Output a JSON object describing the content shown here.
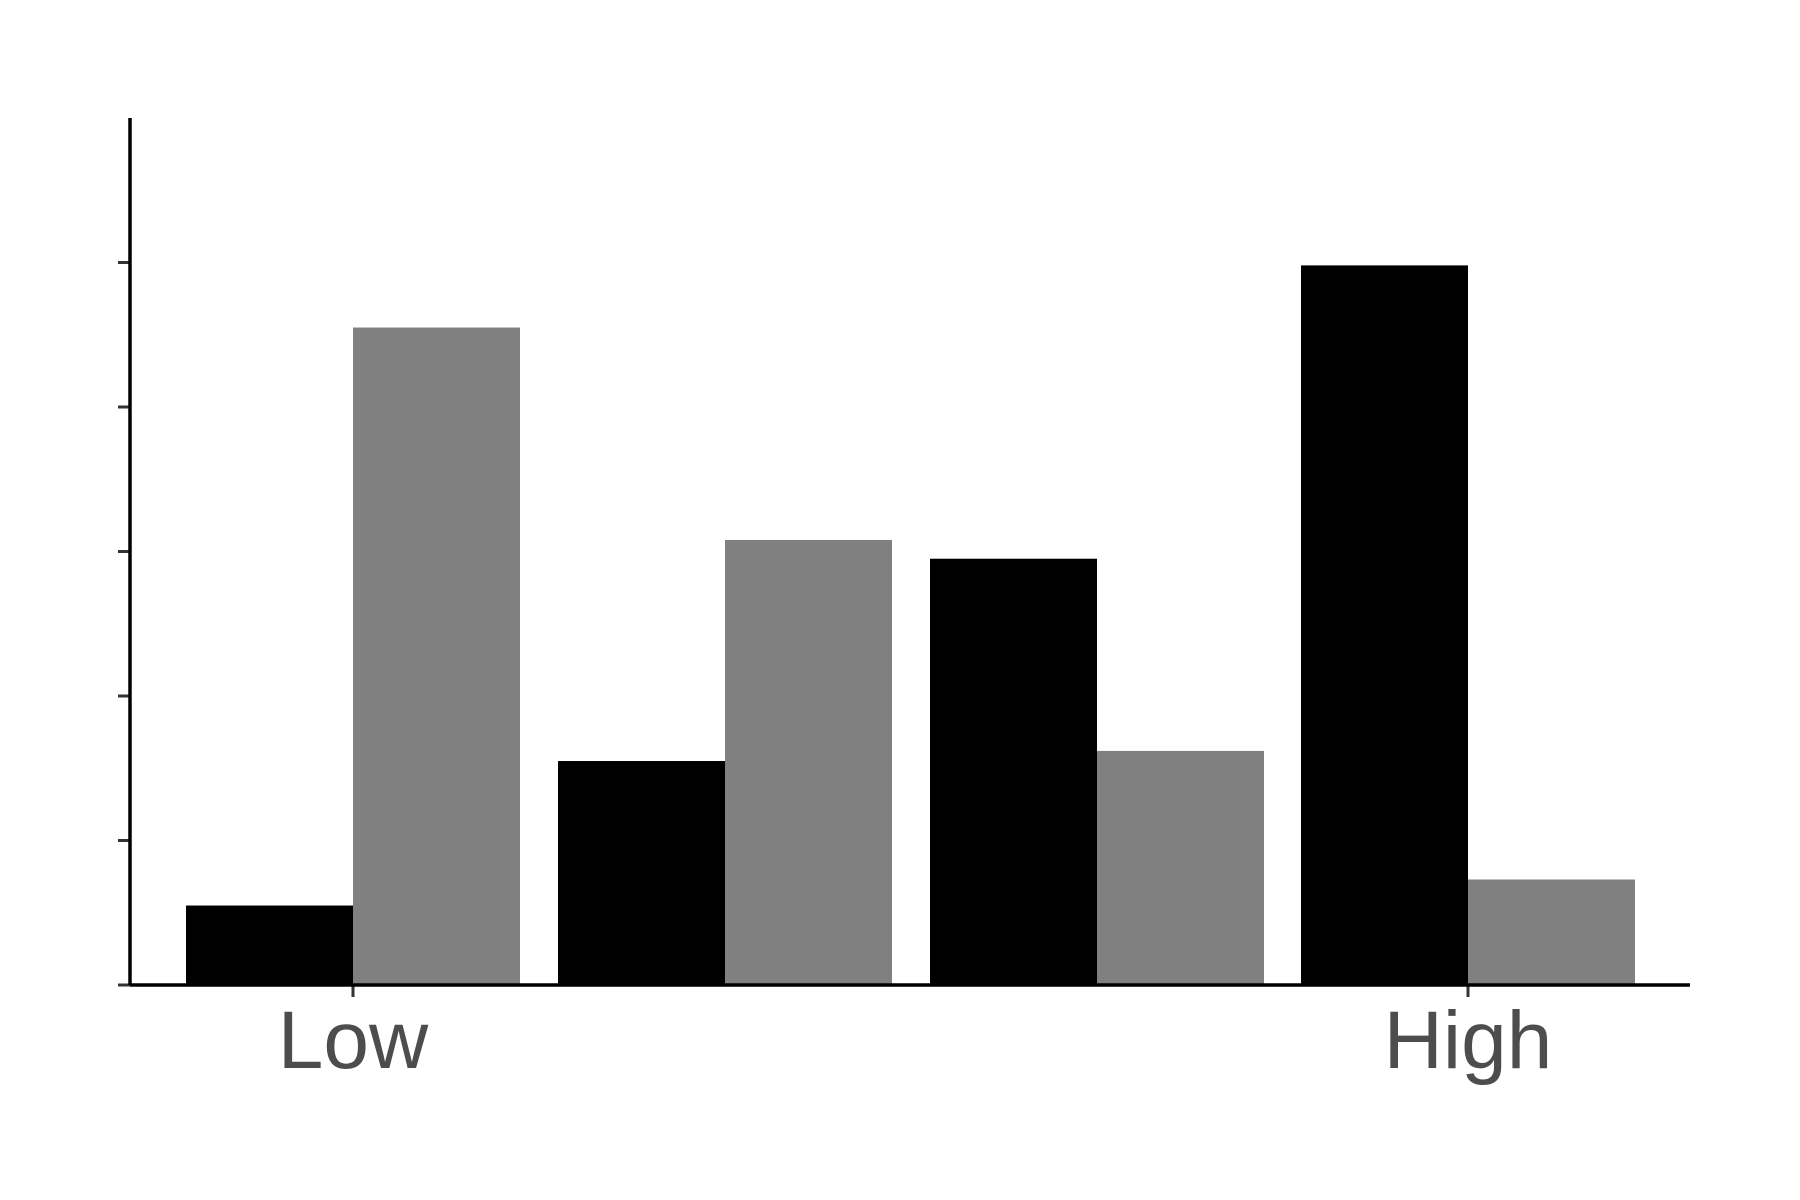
{
  "chart_data": {
    "type": "bar",
    "title": "",
    "xlabel": "",
    "ylabel": "",
    "x_tick_labels": [
      "Low",
      "High"
    ],
    "ylim": [
      0,
      6
    ],
    "y_ticks": [
      0,
      1,
      2,
      3,
      4,
      5
    ],
    "grid": false,
    "legend": "none",
    "series": [
      {
        "color": "#000000",
        "values": [
          0.55,
          1.55,
          2.95,
          4.98
        ]
      },
      {
        "color": "#808080",
        "values": [
          4.55,
          3.08,
          1.62,
          0.73
        ]
      }
    ]
  }
}
